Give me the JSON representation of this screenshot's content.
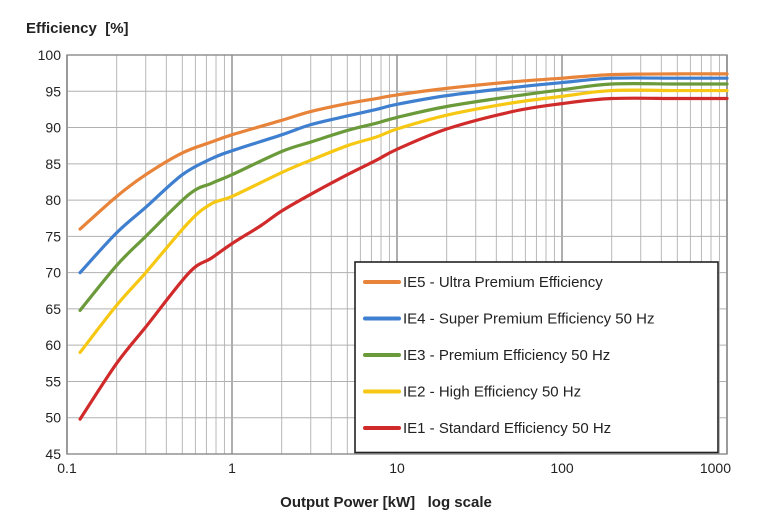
{
  "chart_data": {
    "type": "line",
    "ylabel": "Efficiency  [%]",
    "xlabel": "Output Power [kW]   log scale",
    "x_scale": "log",
    "xlim": [
      0.1,
      1000
    ],
    "ylim": [
      45,
      100
    ],
    "x_ticks": [
      {
        "value": 0.1,
        "label": "0.1"
      },
      {
        "value": 1,
        "label": "1"
      },
      {
        "value": 10,
        "label": "10"
      },
      {
        "value": 100,
        "label": "100"
      },
      {
        "value": 1000,
        "label": "1000"
      }
    ],
    "y_ticks": [
      {
        "value": 45,
        "label": "45"
      },
      {
        "value": 50,
        "label": "50"
      },
      {
        "value": 55,
        "label": "55"
      },
      {
        "value": 60,
        "label": "60"
      },
      {
        "value": 65,
        "label": "65"
      },
      {
        "value": 70,
        "label": "70"
      },
      {
        "value": 75,
        "label": "75"
      },
      {
        "value": 80,
        "label": "80"
      },
      {
        "value": 85,
        "label": "85"
      },
      {
        "value": 90,
        "label": "90"
      },
      {
        "value": 95,
        "label": "95"
      },
      {
        "value": 100,
        "label": "100"
      }
    ],
    "grid": true,
    "legend_position": "bottom-right",
    "series": [
      {
        "name": "IE5 - Ultra Premium Efficiency",
        "color": "#e8833a",
        "x": [
          0.12,
          0.2,
          0.3,
          0.5,
          0.75,
          1,
          2,
          3,
          5,
          7.5,
          10,
          20,
          50,
          100,
          200,
          500,
          1000
        ],
        "y": [
          76,
          80.5,
          83.5,
          86.5,
          88,
          89,
          91,
          92.2,
          93.3,
          94,
          94.5,
          95.4,
          96.3,
          96.8,
          97.3,
          97.4,
          97.4
        ]
      },
      {
        "name": "IE4 - Super Premium Efficiency 50 Hz",
        "color": "#3f7fcf",
        "x": [
          0.12,
          0.2,
          0.3,
          0.5,
          0.75,
          1,
          2,
          3,
          5,
          7.5,
          10,
          20,
          50,
          100,
          200,
          500,
          1000
        ],
        "y": [
          70,
          75.5,
          79,
          83.5,
          85.7,
          86.8,
          89,
          90.4,
          91.6,
          92.5,
          93.2,
          94.4,
          95.5,
          96.2,
          96.8,
          96.8,
          96.8
        ]
      },
      {
        "name": "IE3 - Premium Efficiency 50 Hz",
        "color": "#6a9a3a",
        "x": [
          0.12,
          0.2,
          0.3,
          0.55,
          0.75,
          1,
          2,
          3,
          5,
          7.5,
          10,
          20,
          50,
          100,
          200,
          500,
          1000
        ],
        "y": [
          64.8,
          71,
          75,
          80.8,
          82.3,
          83.5,
          86.7,
          88,
          89.6,
          90.6,
          91.4,
          92.9,
          94.3,
          95.2,
          96,
          96,
          96
        ]
      },
      {
        "name": "IE2 - High Efficiency 50 Hz",
        "color": "#f6c813",
        "x": [
          0.12,
          0.2,
          0.3,
          0.55,
          0.75,
          1,
          2,
          3,
          5,
          7.5,
          10,
          20,
          50,
          100,
          200,
          500,
          1000
        ],
        "y": [
          59,
          65.5,
          70,
          77,
          79.5,
          80.5,
          83.8,
          85.5,
          87.5,
          88.7,
          89.8,
          91.7,
          93.4,
          94.3,
          95.1,
          95.1,
          95.1
        ]
      },
      {
        "name": "IE1 - Standard Efficiency 50 Hz",
        "color": "#d02a2a",
        "x": [
          0.12,
          0.2,
          0.3,
          0.55,
          0.75,
          1,
          1.5,
          2,
          3,
          5,
          7.5,
          10,
          20,
          50,
          100,
          200,
          500,
          1000
        ],
        "y": [
          49.8,
          57.5,
          62.5,
          70,
          72,
          74,
          76.5,
          78.5,
          80.8,
          83.5,
          85.5,
          87,
          89.8,
          92.2,
          93.3,
          94,
          94,
          94
        ]
      }
    ]
  }
}
